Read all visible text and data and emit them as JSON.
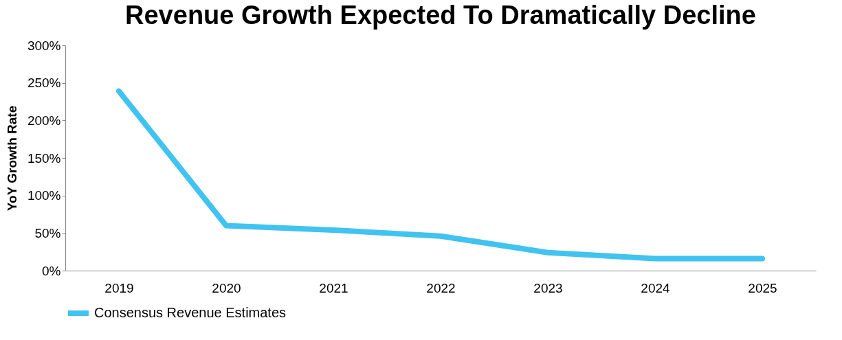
{
  "chart_data": {
    "type": "line",
    "title": "Revenue Growth Expected To Dramatically Decline",
    "ylabel": "YoY Growth Rate",
    "categories": [
      "2019",
      "2020",
      "2021",
      "2022",
      "2023",
      "2024",
      "2025"
    ],
    "series": [
      {
        "name": "Consensus Revenue Estimates",
        "color": "#41c3f0",
        "values": [
          239,
          60,
          54,
          46,
          24,
          16,
          16
        ]
      }
    ],
    "ylim": [
      0,
      300
    ],
    "yticks": [
      {
        "value": 0,
        "label": "0%"
      },
      {
        "value": 50,
        "label": "50%"
      },
      {
        "value": 100,
        "label": "100%"
      },
      {
        "value": 150,
        "label": "150%"
      },
      {
        "value": 200,
        "label": "200%"
      },
      {
        "value": 250,
        "label": "250%"
      },
      {
        "value": 300,
        "label": "300%"
      }
    ],
    "grid": false,
    "legend": "bottom",
    "line_style": "solid"
  }
}
